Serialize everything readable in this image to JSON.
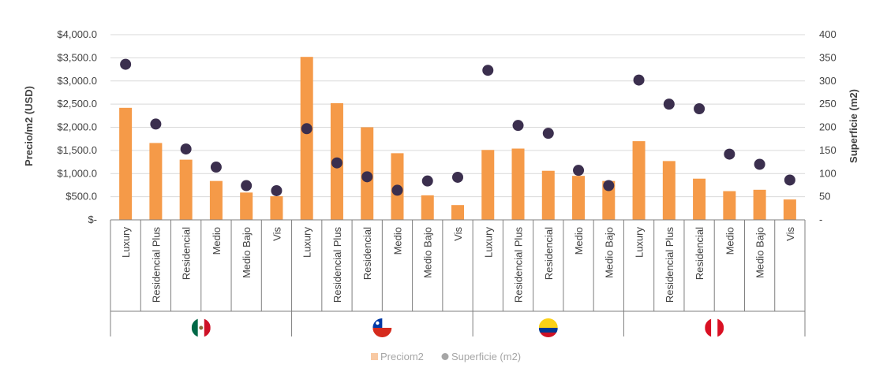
{
  "chart_data": {
    "type": "bar",
    "ylabel": "Precio/m2 (USD)",
    "y2label": "Superficie (m2)",
    "ylim": [
      0,
      4000
    ],
    "y2lim": [
      0,
      400
    ],
    "yticks": [
      "$-",
      "$500.0",
      "$1,000.0",
      "$1,500.0",
      "$2,000.0",
      "$2,500.0",
      "$3,000.0",
      "$3,500.0",
      "$4,000.0"
    ],
    "y2ticks": [
      "-",
      "50",
      "100",
      "150",
      "200",
      "250",
      "300",
      "350",
      "400"
    ],
    "grid": true,
    "legend_position": "bottom",
    "colors": {
      "bar": "#f59a48",
      "dot": "#3b2f4e",
      "grid": "#d9d9d9",
      "axis": "#7f7f7f"
    },
    "groups": [
      {
        "flag": "mexico-flag-icon",
        "categories": [
          "Luxury",
          "Residencial Plus",
          "Residencial",
          "Medio",
          "Medio Bajo",
          "Vis"
        ]
      },
      {
        "flag": "chile-flag-icon",
        "categories": [
          "Luxury",
          "Residencial Plus",
          "Residencial",
          "Medio",
          "Medio Bajo",
          "Vis"
        ]
      },
      {
        "flag": "colombia-flag-icon",
        "categories": [
          "Luxury",
          "Residencial Plus",
          "Residencial",
          "Medio",
          "Medio Bajo"
        ]
      },
      {
        "flag": "peru-flag-icon",
        "categories": [
          "Luxury",
          "Residencial Plus",
          "Residencial",
          "Medio",
          "Medio Bajo",
          "Vis"
        ]
      }
    ],
    "series": [
      {
        "name": "Preciom2",
        "type": "bar",
        "axis": "left",
        "values": [
          2420,
          1660,
          1300,
          840,
          590,
          510,
          3520,
          2520,
          2000,
          1440,
          530,
          320,
          1510,
          1540,
          1060,
          950,
          840,
          1700,
          1270,
          890,
          620,
          650,
          440
        ]
      },
      {
        "name": "Superficie (m2)",
        "type": "scatter",
        "axis": "right",
        "values": [
          336,
          207,
          153,
          114,
          74,
          63,
          197,
          123,
          93,
          64,
          84,
          92,
          323,
          204,
          187,
          107,
          74,
          302,
          250,
          240,
          142,
          120,
          86
        ]
      }
    ]
  }
}
